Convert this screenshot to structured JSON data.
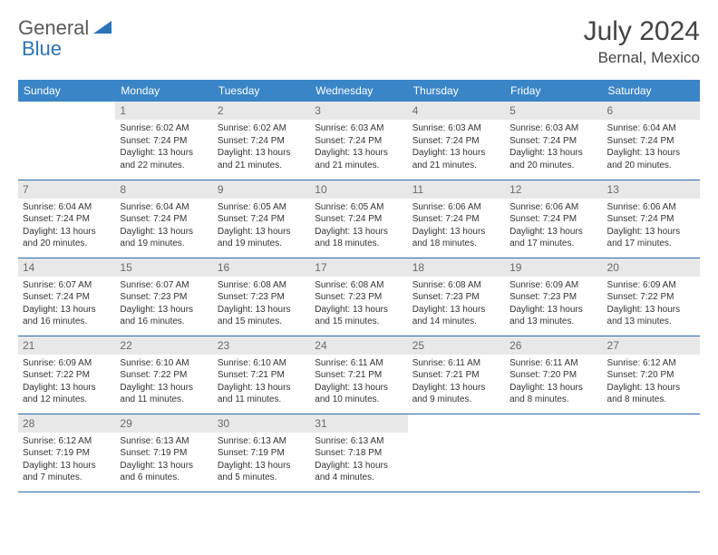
{
  "logo": {
    "text1": "General",
    "text2": "Blue"
  },
  "title": "July 2024",
  "location": "Bernal, Mexico",
  "colors": {
    "header_bg": "#3a85c8",
    "header_text": "#ffffff",
    "daynum_bg": "#e8e8e8",
    "daynum_text": "#6a6a6a",
    "border": "#2a6aa8",
    "logo_gray": "#5a5a5a",
    "logo_blue": "#2a74b8"
  },
  "weekdays": [
    "Sunday",
    "Monday",
    "Tuesday",
    "Wednesday",
    "Thursday",
    "Friday",
    "Saturday"
  ],
  "weeks": [
    [
      {
        "empty": true
      },
      {
        "n": "1",
        "sunrise": "6:02 AM",
        "sunset": "7:24 PM",
        "dl1": "13 hours",
        "dl2": "and 22 minutes."
      },
      {
        "n": "2",
        "sunrise": "6:02 AM",
        "sunset": "7:24 PM",
        "dl1": "13 hours",
        "dl2": "and 21 minutes."
      },
      {
        "n": "3",
        "sunrise": "6:03 AM",
        "sunset": "7:24 PM",
        "dl1": "13 hours",
        "dl2": "and 21 minutes."
      },
      {
        "n": "4",
        "sunrise": "6:03 AM",
        "sunset": "7:24 PM",
        "dl1": "13 hours",
        "dl2": "and 21 minutes."
      },
      {
        "n": "5",
        "sunrise": "6:03 AM",
        "sunset": "7:24 PM",
        "dl1": "13 hours",
        "dl2": "and 20 minutes."
      },
      {
        "n": "6",
        "sunrise": "6:04 AM",
        "sunset": "7:24 PM",
        "dl1": "13 hours",
        "dl2": "and 20 minutes."
      }
    ],
    [
      {
        "n": "7",
        "sunrise": "6:04 AM",
        "sunset": "7:24 PM",
        "dl1": "13 hours",
        "dl2": "and 20 minutes."
      },
      {
        "n": "8",
        "sunrise": "6:04 AM",
        "sunset": "7:24 PM",
        "dl1": "13 hours",
        "dl2": "and 19 minutes."
      },
      {
        "n": "9",
        "sunrise": "6:05 AM",
        "sunset": "7:24 PM",
        "dl1": "13 hours",
        "dl2": "and 19 minutes."
      },
      {
        "n": "10",
        "sunrise": "6:05 AM",
        "sunset": "7:24 PM",
        "dl1": "13 hours",
        "dl2": "and 18 minutes."
      },
      {
        "n": "11",
        "sunrise": "6:06 AM",
        "sunset": "7:24 PM",
        "dl1": "13 hours",
        "dl2": "and 18 minutes."
      },
      {
        "n": "12",
        "sunrise": "6:06 AM",
        "sunset": "7:24 PM",
        "dl1": "13 hours",
        "dl2": "and 17 minutes."
      },
      {
        "n": "13",
        "sunrise": "6:06 AM",
        "sunset": "7:24 PM",
        "dl1": "13 hours",
        "dl2": "and 17 minutes."
      }
    ],
    [
      {
        "n": "14",
        "sunrise": "6:07 AM",
        "sunset": "7:24 PM",
        "dl1": "13 hours",
        "dl2": "and 16 minutes."
      },
      {
        "n": "15",
        "sunrise": "6:07 AM",
        "sunset": "7:23 PM",
        "dl1": "13 hours",
        "dl2": "and 16 minutes."
      },
      {
        "n": "16",
        "sunrise": "6:08 AM",
        "sunset": "7:23 PM",
        "dl1": "13 hours",
        "dl2": "and 15 minutes."
      },
      {
        "n": "17",
        "sunrise": "6:08 AM",
        "sunset": "7:23 PM",
        "dl1": "13 hours",
        "dl2": "and 15 minutes."
      },
      {
        "n": "18",
        "sunrise": "6:08 AM",
        "sunset": "7:23 PM",
        "dl1": "13 hours",
        "dl2": "and 14 minutes."
      },
      {
        "n": "19",
        "sunrise": "6:09 AM",
        "sunset": "7:23 PM",
        "dl1": "13 hours",
        "dl2": "and 13 minutes."
      },
      {
        "n": "20",
        "sunrise": "6:09 AM",
        "sunset": "7:22 PM",
        "dl1": "13 hours",
        "dl2": "and 13 minutes."
      }
    ],
    [
      {
        "n": "21",
        "sunrise": "6:09 AM",
        "sunset": "7:22 PM",
        "dl1": "13 hours",
        "dl2": "and 12 minutes."
      },
      {
        "n": "22",
        "sunrise": "6:10 AM",
        "sunset": "7:22 PM",
        "dl1": "13 hours",
        "dl2": "and 11 minutes."
      },
      {
        "n": "23",
        "sunrise": "6:10 AM",
        "sunset": "7:21 PM",
        "dl1": "13 hours",
        "dl2": "and 11 minutes."
      },
      {
        "n": "24",
        "sunrise": "6:11 AM",
        "sunset": "7:21 PM",
        "dl1": "13 hours",
        "dl2": "and 10 minutes."
      },
      {
        "n": "25",
        "sunrise": "6:11 AM",
        "sunset": "7:21 PM",
        "dl1": "13 hours",
        "dl2": "and 9 minutes."
      },
      {
        "n": "26",
        "sunrise": "6:11 AM",
        "sunset": "7:20 PM",
        "dl1": "13 hours",
        "dl2": "and 8 minutes."
      },
      {
        "n": "27",
        "sunrise": "6:12 AM",
        "sunset": "7:20 PM",
        "dl1": "13 hours",
        "dl2": "and 8 minutes."
      }
    ],
    [
      {
        "n": "28",
        "sunrise": "6:12 AM",
        "sunset": "7:19 PM",
        "dl1": "13 hours",
        "dl2": "and 7 minutes."
      },
      {
        "n": "29",
        "sunrise": "6:13 AM",
        "sunset": "7:19 PM",
        "dl1": "13 hours",
        "dl2": "and 6 minutes."
      },
      {
        "n": "30",
        "sunrise": "6:13 AM",
        "sunset": "7:19 PM",
        "dl1": "13 hours",
        "dl2": "and 5 minutes."
      },
      {
        "n": "31",
        "sunrise": "6:13 AM",
        "sunset": "7:18 PM",
        "dl1": "13 hours",
        "dl2": "and 4 minutes."
      },
      {
        "empty": true
      },
      {
        "empty": true
      },
      {
        "empty": true
      }
    ]
  ],
  "labels": {
    "sunrise": "Sunrise:",
    "sunset": "Sunset:",
    "daylight": "Daylight:"
  }
}
